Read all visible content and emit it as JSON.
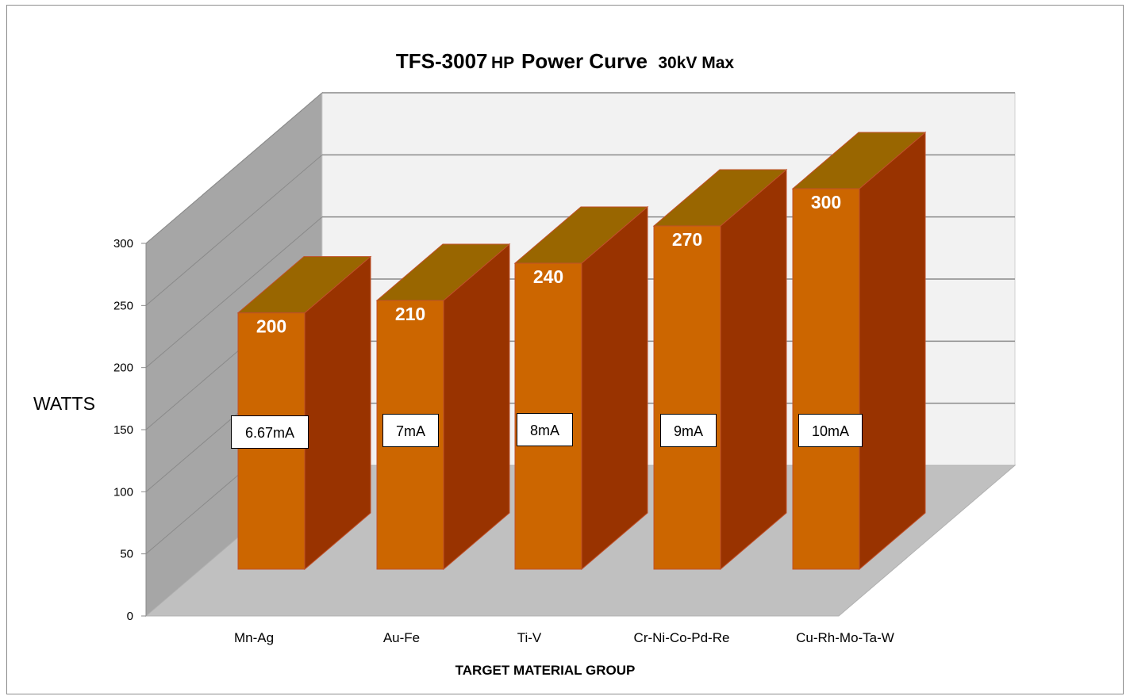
{
  "chart_data": {
    "type": "bar",
    "title_main": "TFS-3007",
    "title_hp": "HP",
    "title_curve": "Power Curve",
    "title_kv": "30kV Max",
    "xlabel": "TARGET MATERIAL GROUP",
    "ylabel": "WATTS",
    "categories": [
      "Mn-Ag",
      "Au-Fe",
      "Ti-V",
      "Cr-Ni-Co-Pd-Re",
      "Cu-Rh-Mo-Ta-W"
    ],
    "values": [
      200,
      210,
      240,
      270,
      300
    ],
    "currents": [
      "6.67mA",
      "7mA",
      "8mA",
      "9mA",
      "10mA"
    ],
    "ylim": [
      0,
      300
    ],
    "yticks": [
      0,
      50,
      100,
      150,
      200,
      250,
      300
    ],
    "grid": true,
    "colors": {
      "bar_front": "#cc6600",
      "bar_side": "#993300",
      "bar_top": "#996600",
      "wall_back": "#f2f2f2",
      "wall_left": "#a6a6a6",
      "floor": "#c0c0c0"
    }
  }
}
